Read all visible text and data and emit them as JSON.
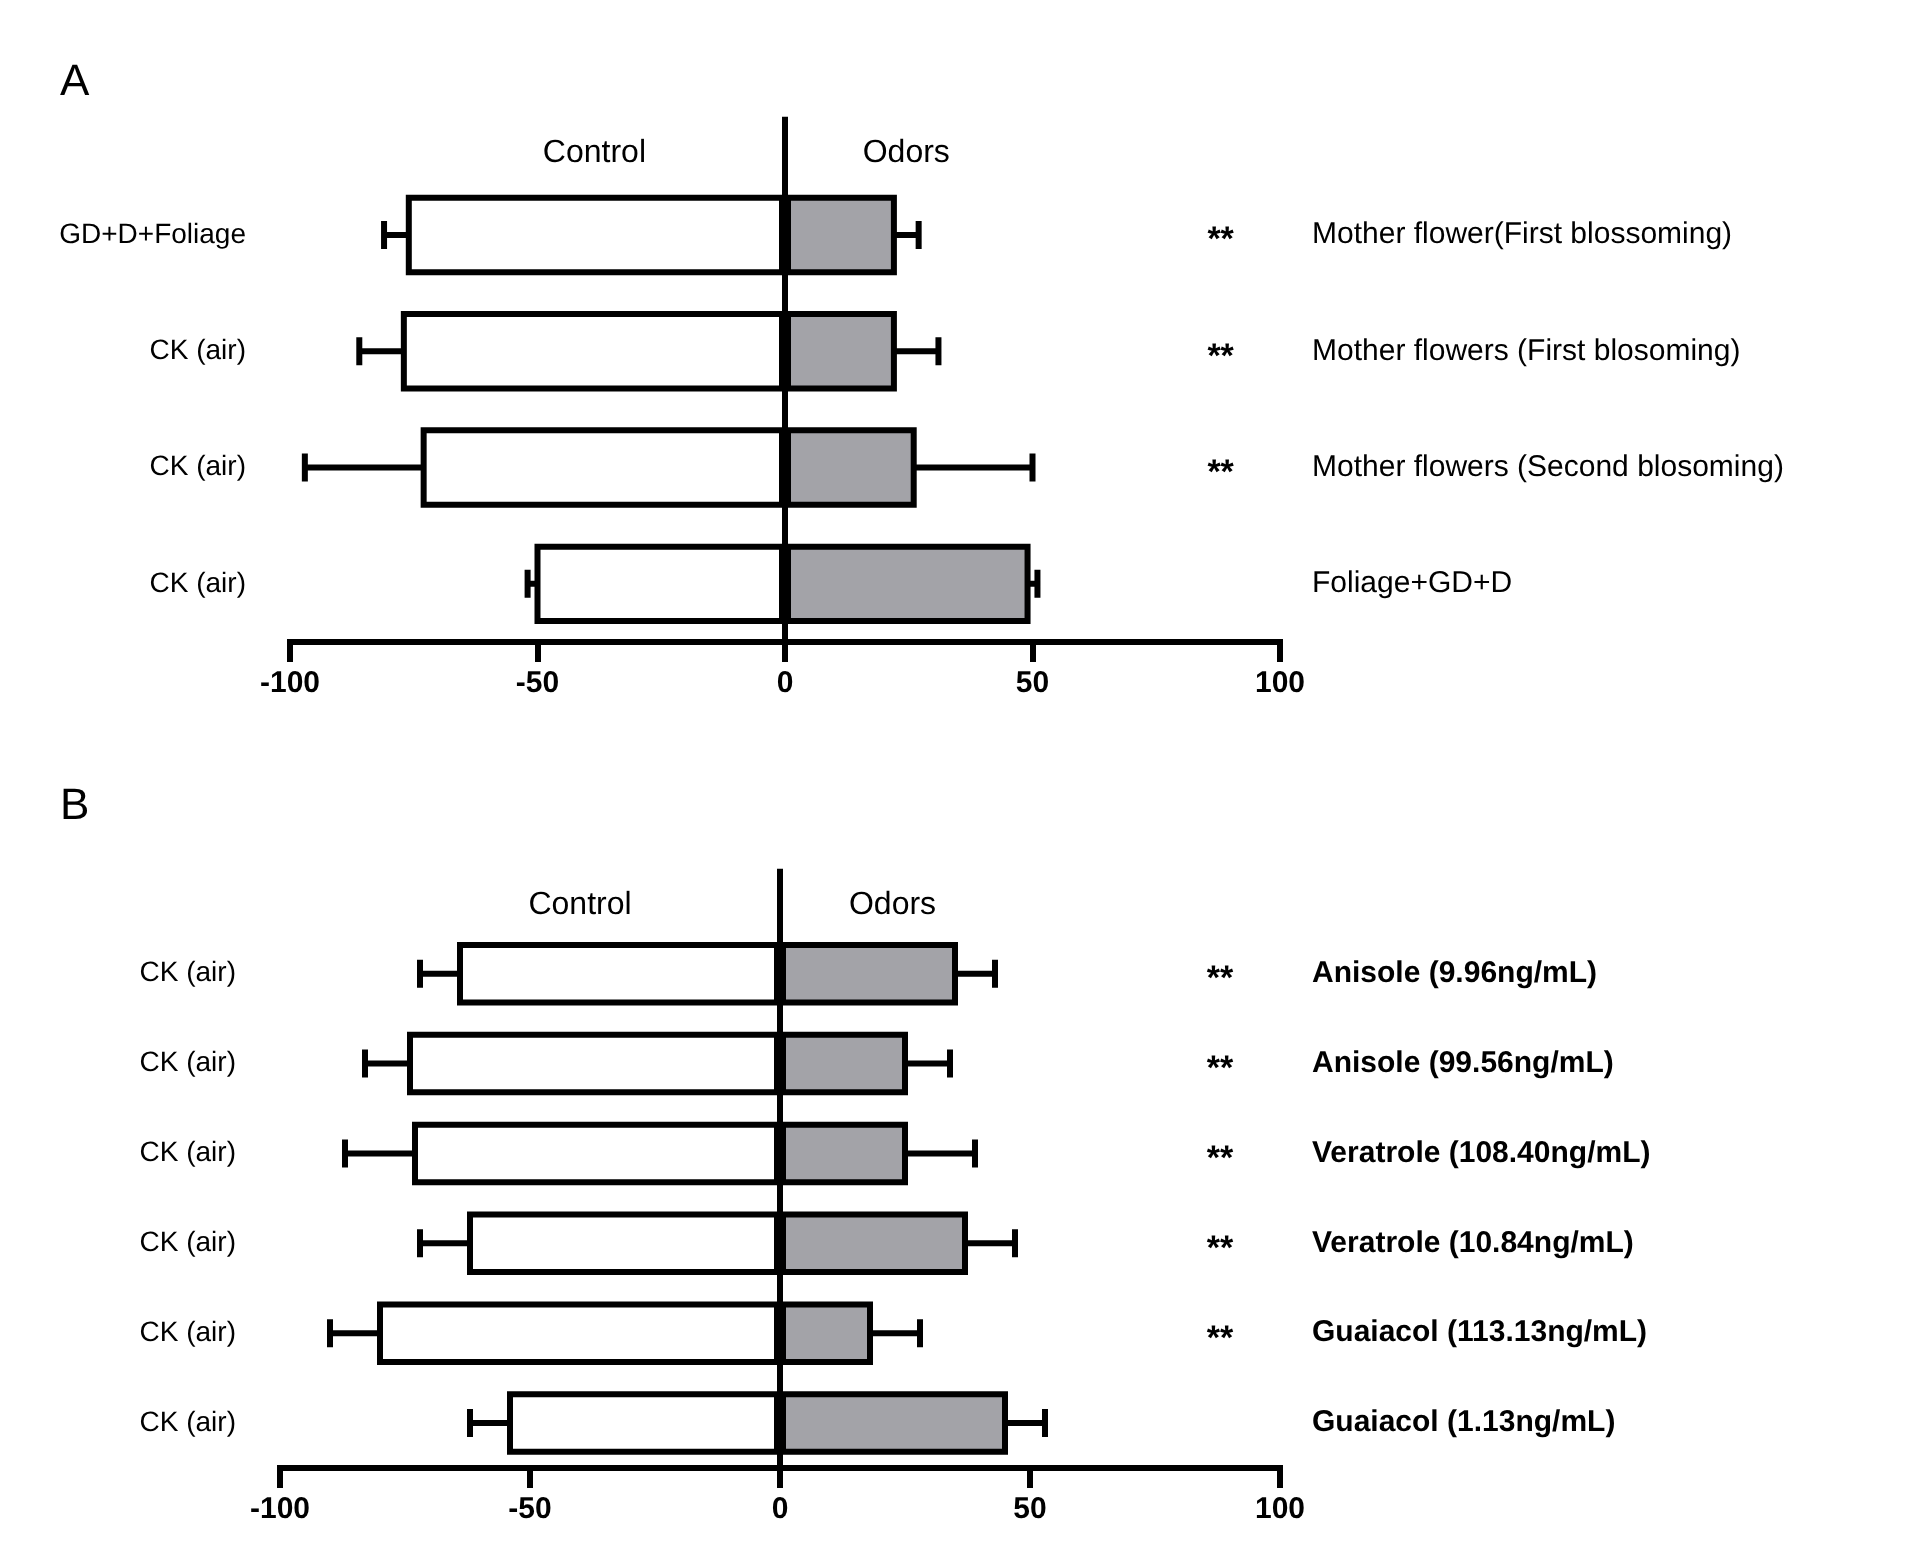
{
  "chart_data": [
    {
      "type": "bar",
      "title": "A",
      "orientation": "horizontal",
      "stacked": true,
      "categories": [
        "Mother flower(First blossoming)",
        "Mother flowers (First blosoming)",
        "Mother flowers (Second blosoming)",
        "Foliage+GD+D"
      ],
      "y2_categories": [
        "GD+D+Foliage",
        "CK (air)",
        "CK (air)",
        "CK (air)"
      ],
      "series": [
        {
          "name": "Control",
          "color": "#ffffff",
          "values": [
            -76,
            -77,
            -73,
            -50
          ],
          "errors": [
            5,
            9,
            24,
            2
          ]
        },
        {
          "name": "Odors",
          "color": "#a3a3a8",
          "values": [
            22,
            22,
            26,
            49
          ],
          "errors": [
            5,
            9,
            24,
            2
          ]
        }
      ],
      "xlim": [
        -100,
        100
      ],
      "xticks": [
        -100,
        -50,
        0,
        50,
        100
      ],
      "ref_lines": [
        {
          "axis": "x",
          "value": 0
        }
      ],
      "annotations": [
        "**",
        "**",
        "**"
      ],
      "grid": false,
      "legend": false
    },
    {
      "type": "bar",
      "title": "B",
      "orientation": "horizontal",
      "stacked": true,
      "categories": [
        "Anisole (9.96ng/mL)",
        "Anisole (99.56ng/mL)",
        "Veratrole (108.40ng/mL)",
        "Veratrole (10.84ng/mL)",
        "Guaiacol (113.13ng/mL)",
        "Guaiacol (1.13ng/mL)"
      ],
      "y2_categories": [
        "CK (air)",
        "CK (air)",
        "CK (air)",
        "CK (air)",
        "CK (air)",
        "CK (air)"
      ],
      "series": [
        {
          "name": "Control",
          "color": "#ffffff",
          "values": [
            -64,
            -74,
            -73,
            -62,
            -80,
            -54
          ],
          "errors": [
            8,
            9,
            14,
            10,
            10,
            8
          ]
        },
        {
          "name": "Odors",
          "color": "#a3a3a8",
          "values": [
            35,
            25,
            25,
            37,
            18,
            45
          ],
          "errors": [
            8,
            9,
            14,
            10,
            10,
            8
          ]
        }
      ],
      "xlim": [
        -100,
        100
      ],
      "xticks": [
        -100,
        -50,
        0,
        50,
        100
      ],
      "ref_lines": [
        {
          "axis": "x",
          "value": 0
        }
      ],
      "annotations": [
        "**",
        "**",
        "**",
        "**",
        "**"
      ],
      "grid": false,
      "legend": false
    }
  ]
}
